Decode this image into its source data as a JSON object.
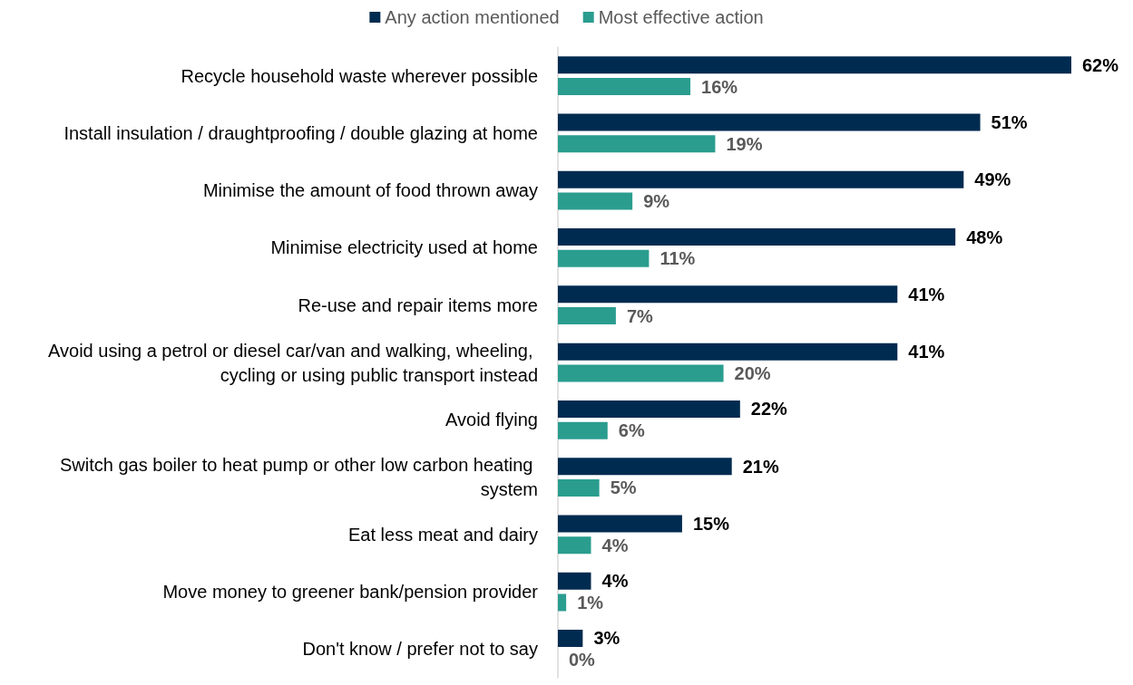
{
  "chart_data": {
    "type": "bar",
    "orientation": "horizontal",
    "legend": "top",
    "categories": [
      "Recycle household waste wherever possible",
      "Install insulation / draughtproofing / double glazing at home",
      "Minimise the amount of food thrown away",
      "Minimise electricity used at home",
      "Re-use and repair items more",
      "Avoid using a petrol or diesel car/van and walking, wheeling, cycling or using public transport instead",
      "Avoid flying",
      "Switch gas boiler to heat pump or other low carbon heating system",
      "Eat less meat and dairy",
      "Move money to greener bank/pension provider",
      "Don't know / prefer not to say"
    ],
    "series": [
      {
        "name": "Any action mentioned",
        "color": "#002b50",
        "values": [
          62,
          51,
          49,
          48,
          41,
          41,
          22,
          21,
          15,
          4,
          3
        ],
        "value_labels": [
          "62%",
          "51%",
          "49%",
          "48%",
          "41%",
          "41%",
          "22%",
          "21%",
          "15%",
          "4%",
          "3%"
        ]
      },
      {
        "name": "Most effective action",
        "color": "#2a9d8f",
        "values": [
          16,
          19,
          9,
          11,
          7,
          20,
          6,
          5,
          4,
          1,
          0
        ],
        "value_labels": [
          "16%",
          "19%",
          "9%",
          "11%",
          "7%",
          "20%",
          "6%",
          "5%",
          "4%",
          "1%",
          "0%"
        ]
      }
    ]
  }
}
